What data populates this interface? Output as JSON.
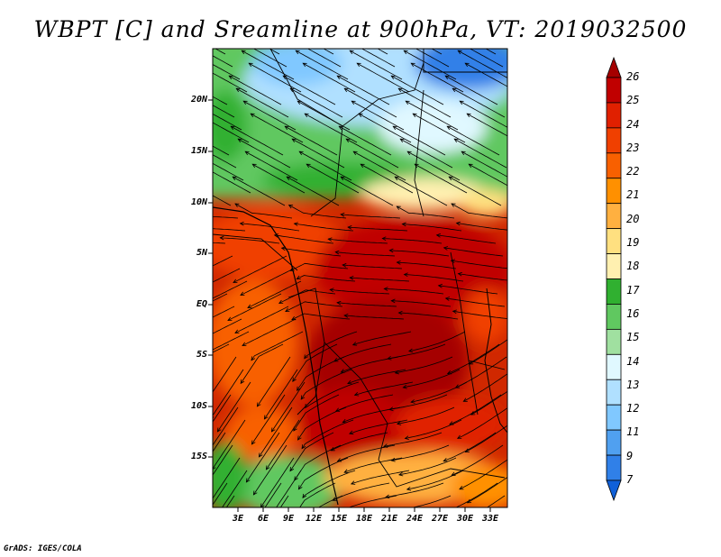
{
  "title": "WBPT [C] and Sreamline at 900hPa, VT: 2019032500",
  "credit": "GrADS: IGES/COLA",
  "lat_labels": [
    "20N",
    "15N",
    "10N",
    "5N",
    "EQ",
    "5S",
    "10S",
    "15S"
  ],
  "lon_labels": [
    "3E",
    "6E",
    "9E",
    "12E",
    "15E",
    "18E",
    "21E",
    "24E",
    "27E",
    "30E",
    "33E"
  ],
  "colorbar": {
    "labels": [
      "26",
      "25",
      "24",
      "23",
      "22",
      "21",
      "20",
      "19",
      "18",
      "17",
      "16",
      "15",
      "14",
      "13",
      "12",
      "11",
      "9",
      "7"
    ],
    "colors": [
      "#a50000",
      "#c00000",
      "#e02000",
      "#f04000",
      "#f86000",
      "#ff9000",
      "#ffb040",
      "#ffe080",
      "#fff0b0",
      "#30b030",
      "#60c860",
      "#a0e0a0",
      "#e0f8ff",
      "#b0e0ff",
      "#80c8ff",
      "#50a0f0",
      "#3080e8",
      "#1060d8"
    ]
  }
}
